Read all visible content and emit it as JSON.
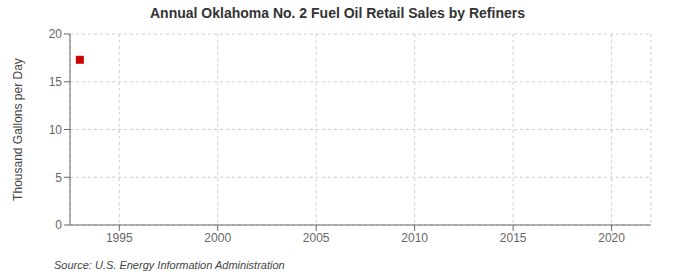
{
  "chart_data": {
    "type": "scatter",
    "title": "Annual Oklahoma No. 2 Fuel Oil Retail Sales by Refiners",
    "ylabel": "Thousand Gallons per Day",
    "annotations": [
      "Source: U.S. Energy Information Administration"
    ],
    "x": [
      1993
    ],
    "values": [
      17.3
    ],
    "color": "#cc0000",
    "marker": "square",
    "xlim": [
      1992.5,
      2022
    ],
    "ylim": [
      0,
      20
    ],
    "xticks": [
      1995,
      2000,
      2005,
      2010,
      2015,
      2020
    ],
    "yticks": [
      0,
      5,
      10,
      15,
      20
    ],
    "grid": true
  }
}
